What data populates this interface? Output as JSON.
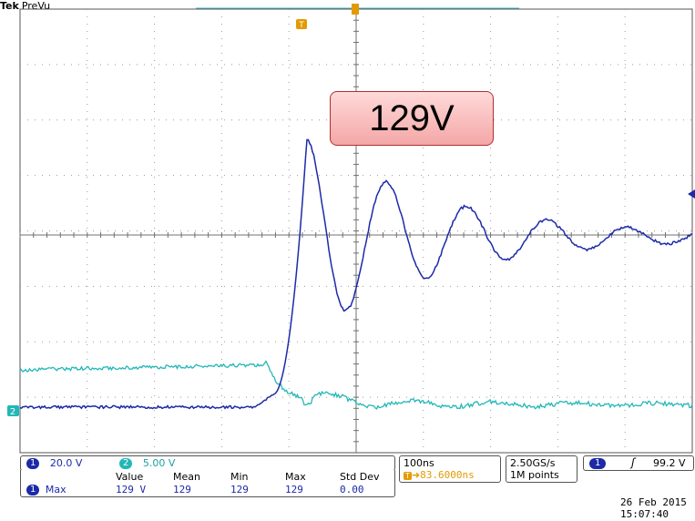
{
  "header": {
    "brand": "Tek",
    "mode": "PreVu"
  },
  "annotation": {
    "text": "129V"
  },
  "markers": {
    "trigger_marker": "T",
    "ch2_marker": "2"
  },
  "channels": [
    {
      "label": "1",
      "scale": "20.0 V",
      "color": "#1c2aa8"
    },
    {
      "label": "2",
      "scale": "5.00 V",
      "color": "#22b7b7"
    }
  ],
  "measurements": {
    "columns": [
      "Value",
      "Mean",
      "Min",
      "Max",
      "Std Dev"
    ],
    "rows": [
      {
        "channel": "1",
        "name": "Max",
        "value": "129 V",
        "mean": "129",
        "min": "129",
        "max": "129",
        "std_dev": "0.00"
      }
    ]
  },
  "timebase": {
    "scale": "100ns",
    "position": "83.6000ns",
    "position_icon": "T-arrow-icon"
  },
  "acquisition": {
    "rate": "2.50GS/s",
    "record": "1M points"
  },
  "trigger": {
    "channel": "1",
    "slope": "rising-edge-icon",
    "level": "99.2 V"
  },
  "datetime": {
    "date": "26 Feb  2015",
    "time": "15:07:40"
  },
  "colors": {
    "ch1": "#1c2aa8",
    "ch2": "#22b7b7",
    "trigger": "#e39a00",
    "annotation_border": "#b03030"
  }
}
